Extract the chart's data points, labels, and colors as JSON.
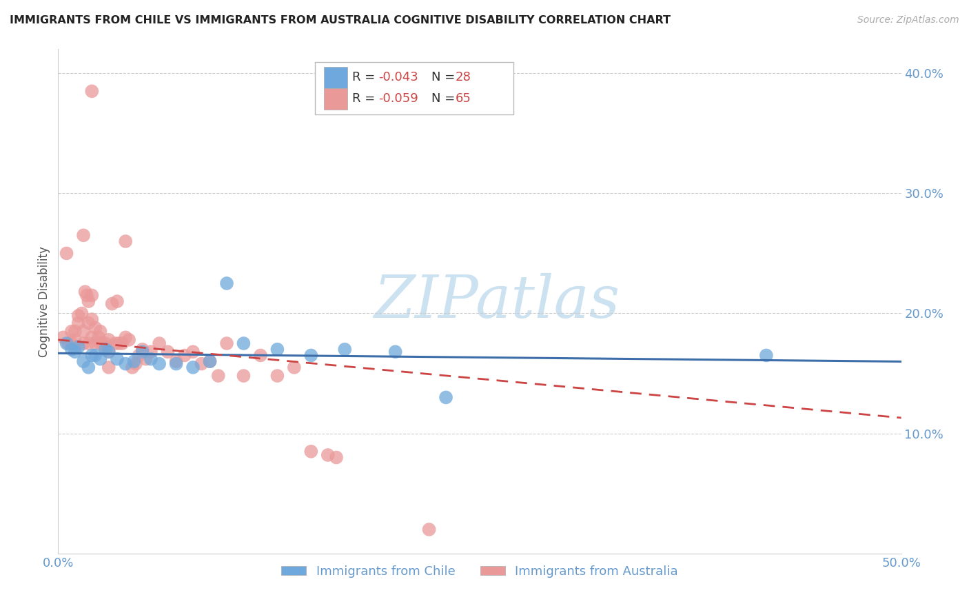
{
  "title": "IMMIGRANTS FROM CHILE VS IMMIGRANTS FROM AUSTRALIA COGNITIVE DISABILITY CORRELATION CHART",
  "source": "Source: ZipAtlas.com",
  "ylabel": "Cognitive Disability",
  "xlim": [
    0.0,
    0.5
  ],
  "ylim": [
    0.0,
    0.42
  ],
  "y_ticks": [
    0.1,
    0.2,
    0.3,
    0.4
  ],
  "y_tick_labels": [
    "10.0%",
    "20.0%",
    "30.0%",
    "40.0%"
  ],
  "legend_r1": "R = -0.043",
  "legend_n1": "N = 28",
  "legend_r2": "R = -0.059",
  "legend_n2": "N = 65",
  "color_chile": "#6fa8dc",
  "color_australia": "#ea9999",
  "color_chile_line": "#3d6eaa",
  "color_australia_line": "#cc4444",
  "color_right_labels": "#6699cc",
  "color_legend_text": "#4477aa",
  "color_legend_rval": "#cc4444",
  "chile_x": [
    0.005,
    0.008,
    0.01,
    0.012,
    0.015,
    0.018,
    0.02,
    0.022,
    0.025,
    0.028,
    0.03,
    0.035,
    0.04,
    0.045,
    0.05,
    0.055,
    0.06,
    0.07,
    0.08,
    0.09,
    0.1,
    0.11,
    0.13,
    0.15,
    0.17,
    0.2,
    0.23,
    0.42
  ],
  "chile_y": [
    0.175,
    0.17,
    0.168,
    0.172,
    0.16,
    0.155,
    0.165,
    0.165,
    0.162,
    0.17,
    0.168,
    0.162,
    0.158,
    0.16,
    0.168,
    0.162,
    0.158,
    0.158,
    0.155,
    0.16,
    0.225,
    0.175,
    0.17,
    0.165,
    0.17,
    0.168,
    0.13,
    0.165
  ],
  "australia_x": [
    0.003,
    0.005,
    0.006,
    0.008,
    0.008,
    0.01,
    0.01,
    0.01,
    0.012,
    0.012,
    0.014,
    0.015,
    0.015,
    0.015,
    0.016,
    0.017,
    0.018,
    0.018,
    0.018,
    0.02,
    0.02,
    0.02,
    0.022,
    0.022,
    0.024,
    0.025,
    0.025,
    0.026,
    0.028,
    0.028,
    0.03,
    0.03,
    0.03,
    0.032,
    0.034,
    0.035,
    0.036,
    0.038,
    0.04,
    0.04,
    0.042,
    0.044,
    0.046,
    0.048,
    0.05,
    0.052,
    0.055,
    0.06,
    0.065,
    0.07,
    0.075,
    0.08,
    0.085,
    0.09,
    0.095,
    0.1,
    0.11,
    0.12,
    0.13,
    0.14,
    0.15,
    0.16,
    0.165,
    0.02,
    0.22
  ],
  "australia_y": [
    0.18,
    0.25,
    0.175,
    0.175,
    0.185,
    0.185,
    0.178,
    0.172,
    0.192,
    0.198,
    0.2,
    0.265,
    0.185,
    0.175,
    0.218,
    0.215,
    0.21,
    0.192,
    0.175,
    0.215,
    0.195,
    0.18,
    0.188,
    0.175,
    0.18,
    0.185,
    0.175,
    0.175,
    0.175,
    0.172,
    0.178,
    0.168,
    0.155,
    0.208,
    0.175,
    0.21,
    0.175,
    0.175,
    0.26,
    0.18,
    0.178,
    0.155,
    0.158,
    0.165,
    0.17,
    0.162,
    0.168,
    0.175,
    0.168,
    0.16,
    0.165,
    0.168,
    0.158,
    0.16,
    0.148,
    0.175,
    0.148,
    0.165,
    0.148,
    0.155,
    0.085,
    0.082,
    0.08,
    0.385,
    0.02
  ],
  "watermark_text": "ZIPatlas",
  "watermark_color": "#c8dff0",
  "bottom_legend_labels": [
    "Immigrants from Chile",
    "Immigrants from Australia"
  ]
}
